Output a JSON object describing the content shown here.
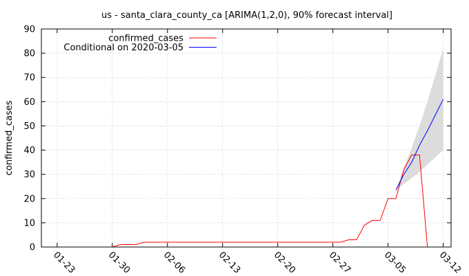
{
  "chart_data": {
    "type": "line",
    "title": "us - santa_clara_county_ca [ARIMA(1,2,0), 90% forecast interval]",
    "xlabel": "",
    "ylabel": "confirmed_cases",
    "xlim": [
      "2020-01-21",
      "2020-03-13"
    ],
    "ylim": [
      0,
      90
    ],
    "x_ticks": [
      "01-23",
      "01-30",
      "02-06",
      "02-13",
      "02-20",
      "02-27",
      "03-05",
      "03-12"
    ],
    "x_tick_dates": [
      "2020-01-23",
      "2020-01-30",
      "2020-02-06",
      "2020-02-13",
      "2020-02-20",
      "2020-02-27",
      "2020-03-05",
      "2020-03-12"
    ],
    "y_ticks": [
      0,
      10,
      20,
      30,
      40,
      50,
      60,
      70,
      80,
      90
    ],
    "grid": true,
    "legend_position": "top-left",
    "series": [
      {
        "name": "confirmed_cases",
        "color": "#ff0000",
        "points": [
          [
            "2020-01-30",
            0
          ],
          [
            "2020-01-31",
            1
          ],
          [
            "2020-02-01",
            1
          ],
          [
            "2020-02-02",
            1
          ],
          [
            "2020-02-03",
            2
          ],
          [
            "2020-02-04",
            2
          ],
          [
            "2020-02-05",
            2
          ],
          [
            "2020-02-06",
            2
          ],
          [
            "2020-02-07",
            2
          ],
          [
            "2020-02-08",
            2
          ],
          [
            "2020-02-09",
            2
          ],
          [
            "2020-02-10",
            2
          ],
          [
            "2020-02-11",
            2
          ],
          [
            "2020-02-12",
            2
          ],
          [
            "2020-02-13",
            2
          ],
          [
            "2020-02-14",
            2
          ],
          [
            "2020-02-15",
            2
          ],
          [
            "2020-02-16",
            2
          ],
          [
            "2020-02-17",
            2
          ],
          [
            "2020-02-18",
            2
          ],
          [
            "2020-02-19",
            2
          ],
          [
            "2020-02-20",
            2
          ],
          [
            "2020-02-21",
            2
          ],
          [
            "2020-02-22",
            2
          ],
          [
            "2020-02-23",
            2
          ],
          [
            "2020-02-24",
            2
          ],
          [
            "2020-02-25",
            2
          ],
          [
            "2020-02-26",
            2
          ],
          [
            "2020-02-27",
            2
          ],
          [
            "2020-02-28",
            2
          ],
          [
            "2020-02-29",
            3
          ],
          [
            "2020-03-01",
            3
          ],
          [
            "2020-03-02",
            9
          ],
          [
            "2020-03-03",
            11
          ],
          [
            "2020-03-04",
            11
          ],
          [
            "2020-03-05",
            20
          ],
          [
            "2020-03-06",
            20
          ],
          [
            "2020-03-07",
            32
          ],
          [
            "2020-03-08",
            38
          ],
          [
            "2020-03-09",
            38
          ],
          [
            "2020-03-10",
            0
          ]
        ]
      },
      {
        "name": "Conditional on 2020-03-05",
        "color": "#0000ff",
        "points": [
          [
            "2020-03-06",
            23.5
          ],
          [
            "2020-03-07",
            30
          ],
          [
            "2020-03-08",
            35
          ],
          [
            "2020-03-09",
            42
          ],
          [
            "2020-03-10",
            48
          ],
          [
            "2020-03-11",
            54.5
          ],
          [
            "2020-03-12",
            61
          ]
        ]
      }
    ],
    "forecast_interval": {
      "level": "90%",
      "color": "#dcdcdc",
      "x": [
        "2020-03-06",
        "2020-03-07",
        "2020-03-08",
        "2020-03-09",
        "2020-03-10",
        "2020-03-11",
        "2020-03-12"
      ],
      "lower": [
        23.5,
        26,
        28.5,
        31,
        34,
        37,
        40
      ],
      "upper": [
        23.5,
        32.5,
        41,
        50,
        60,
        71,
        82
      ]
    }
  }
}
